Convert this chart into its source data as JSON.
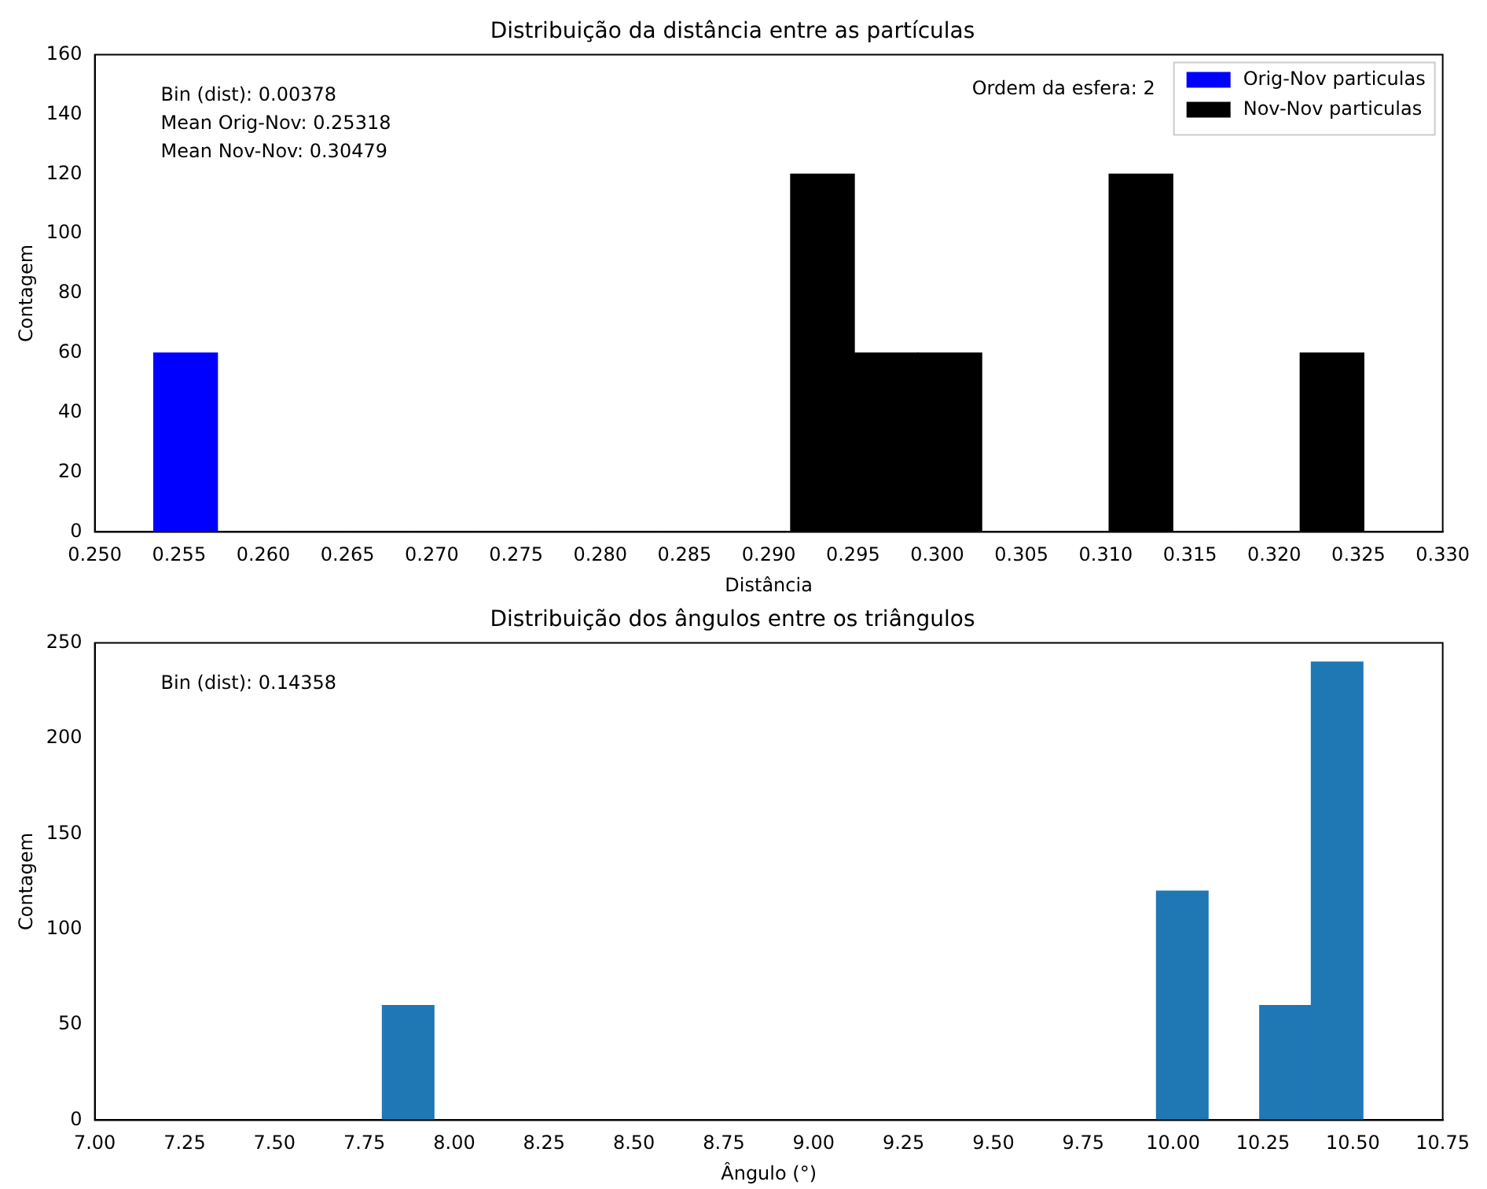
{
  "chart_data": [
    {
      "type": "histogram",
      "title": "Distribuição da distância entre as partículas",
      "xlabel": "Distância",
      "ylabel": "Contagem",
      "annotations": [
        "Bin (dist): 0.00378",
        "Mean Orig-Nov: 0.25318",
        "Mean Nov-Nov: 0.30479",
        "Ordem da esfera: 2"
      ],
      "bins": [
        0.2535,
        0.25728,
        0.26106,
        0.26484,
        0.26862,
        0.2724,
        0.27618,
        0.27996,
        0.28374,
        0.28752,
        0.2913,
        0.29508,
        0.29886,
        0.30264,
        0.30642,
        0.3102,
        0.31398,
        0.31776,
        0.32154,
        0.32532
      ],
      "series": [
        {
          "name": "Orig-Nov particulas",
          "color": "#0000ff",
          "values": [
            60,
            0,
            0,
            0,
            0,
            0,
            0,
            0,
            0,
            0,
            0,
            0,
            0,
            0,
            0,
            0,
            0,
            0,
            0
          ]
        },
        {
          "name": "Nov-Nov particulas",
          "color": "#000000",
          "values": [
            0,
            0,
            0,
            0,
            0,
            0,
            0,
            0,
            0,
            0,
            120,
            60,
            60,
            0,
            0,
            120,
            0,
            0,
            60
          ]
        }
      ],
      "xlim": [
        0.25,
        0.33
      ],
      "xticks": [
        {
          "value": 0.25,
          "label": "0.250"
        },
        {
          "value": 0.255,
          "label": "0.255"
        },
        {
          "value": 0.26,
          "label": "0.260"
        },
        {
          "value": 0.265,
          "label": "0.265"
        },
        {
          "value": 0.27,
          "label": "0.270"
        },
        {
          "value": 0.275,
          "label": "0.275"
        },
        {
          "value": 0.28,
          "label": "0.280"
        },
        {
          "value": 0.285,
          "label": "0.285"
        },
        {
          "value": 0.29,
          "label": "0.290"
        },
        {
          "value": 0.295,
          "label": "0.295"
        },
        {
          "value": 0.3,
          "label": "0.300"
        },
        {
          "value": 0.305,
          "label": "0.305"
        },
        {
          "value": 0.31,
          "label": "0.310"
        },
        {
          "value": 0.315,
          "label": "0.315"
        },
        {
          "value": 0.32,
          "label": "0.320"
        },
        {
          "value": 0.325,
          "label": "0.325"
        },
        {
          "value": 0.33,
          "label": "0.330"
        }
      ],
      "ylim": [
        0,
        160
      ],
      "yticks": [
        0,
        20,
        40,
        60,
        80,
        100,
        120,
        140,
        160
      ],
      "grid": false,
      "legend": "top right"
    },
    {
      "type": "histogram",
      "title": "Distribuição dos ângulos entre os triângulos",
      "xlabel": "Ângulo (°)",
      "ylabel": "Contagem",
      "annotations": [
        "Bin (dist): 0.14358"
      ],
      "bins": [
        7.8,
        7.94358,
        8.08716,
        8.23074,
        8.37432,
        8.5179,
        8.66148,
        8.80506,
        8.94864,
        9.09222,
        9.2358,
        9.37938,
        9.52296,
        9.66654,
        9.81012,
        9.9537,
        10.09728,
        10.24086,
        10.38444,
        10.52802
      ],
      "color": "#1f77b4",
      "values": [
        60,
        0,
        0,
        0,
        0,
        0,
        0,
        0,
        0,
        0,
        0,
        0,
        0,
        0,
        0,
        120,
        0,
        60,
        240
      ],
      "xlim": [
        7,
        10.75
      ],
      "xticks": [
        {
          "value": 7,
          "label": "7.00"
        },
        {
          "value": 7.25,
          "label": "7.25"
        },
        {
          "value": 7.5,
          "label": "7.50"
        },
        {
          "value": 7.75,
          "label": "7.75"
        },
        {
          "value": 8,
          "label": "8.00"
        },
        {
          "value": 8.25,
          "label": "8.25"
        },
        {
          "value": 8.5,
          "label": "8.50"
        },
        {
          "value": 8.75,
          "label": "8.75"
        },
        {
          "value": 9,
          "label": "9.00"
        },
        {
          "value": 9.25,
          "label": "9.25"
        },
        {
          "value": 9.5,
          "label": "9.50"
        },
        {
          "value": 9.75,
          "label": "9.75"
        },
        {
          "value": 10,
          "label": "10.00"
        },
        {
          "value": 10.25,
          "label": "10.25"
        },
        {
          "value": 10.5,
          "label": "10.50"
        },
        {
          "value": 10.75,
          "label": "10.75"
        }
      ],
      "ylim": [
        0,
        250
      ],
      "yticks": [
        0,
        50,
        100,
        150,
        200,
        250
      ],
      "grid": false
    }
  ]
}
